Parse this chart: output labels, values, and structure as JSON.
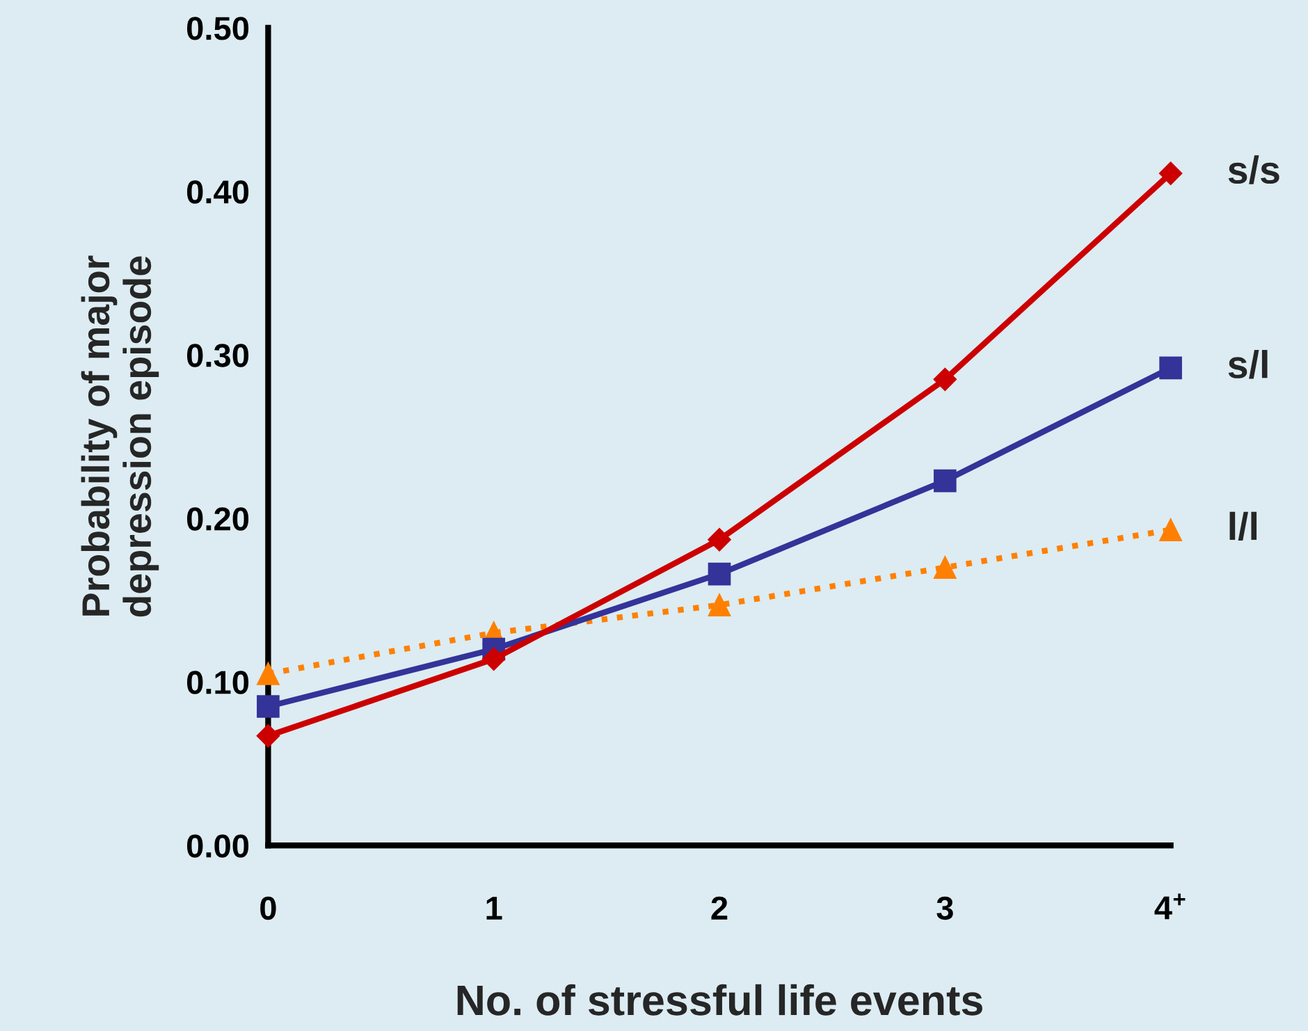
{
  "chart_data": {
    "type": "line",
    "xlabel": "No. of stressful life events",
    "ylabel": "Probability of major\ndepression episode",
    "categories": [
      "0",
      "1",
      "2",
      "3",
      "4$^{+}$"
    ],
    "ylim": [
      0,
      0.5
    ],
    "yticks": [
      {
        "value": 0,
        "label": "0.00"
      },
      {
        "value": 0.1,
        "label": "0.10"
      },
      {
        "value": 0.2,
        "label": "0.20"
      },
      {
        "value": 0.3,
        "label": "0.30"
      },
      {
        "value": 0.4,
        "label": "0.40"
      },
      {
        "value": 0.5,
        "label": "0.50"
      }
    ],
    "grid": false,
    "legend": false,
    "series": [
      {
        "name": "s/s",
        "color": "#cc0000",
        "marker": "diamond",
        "line_style": "solid",
        "values": [
          0.067,
          0.114,
          0.187,
          0.285,
          0.411
        ]
      },
      {
        "name": "s/l",
        "color": "#333399",
        "marker": "square",
        "line_style": "solid",
        "values": [
          0.085,
          0.12,
          0.166,
          0.223,
          0.292
        ]
      },
      {
        "name": "l/l",
        "color": "#ff8000",
        "marker": "triangle",
        "line_style": "dotted",
        "values": [
          0.105,
          0.13,
          0.147,
          0.17,
          0.193
        ]
      }
    ]
  }
}
